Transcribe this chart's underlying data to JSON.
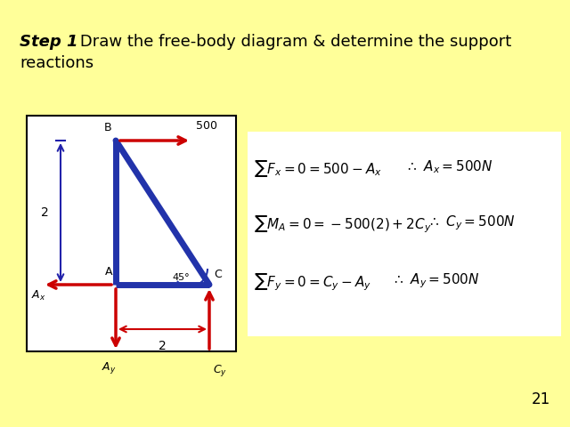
{
  "bg_color": "#ffff99",
  "diagram_color": "#2233aa",
  "force_color": "#cc0000",
  "page_number": "21",
  "lw_struct": 5,
  "eq_box_bg": "white",
  "title_line1": ": Draw the free-body diagram & determine the support",
  "title_line2": "reactions",
  "title_bold": "Step 1"
}
